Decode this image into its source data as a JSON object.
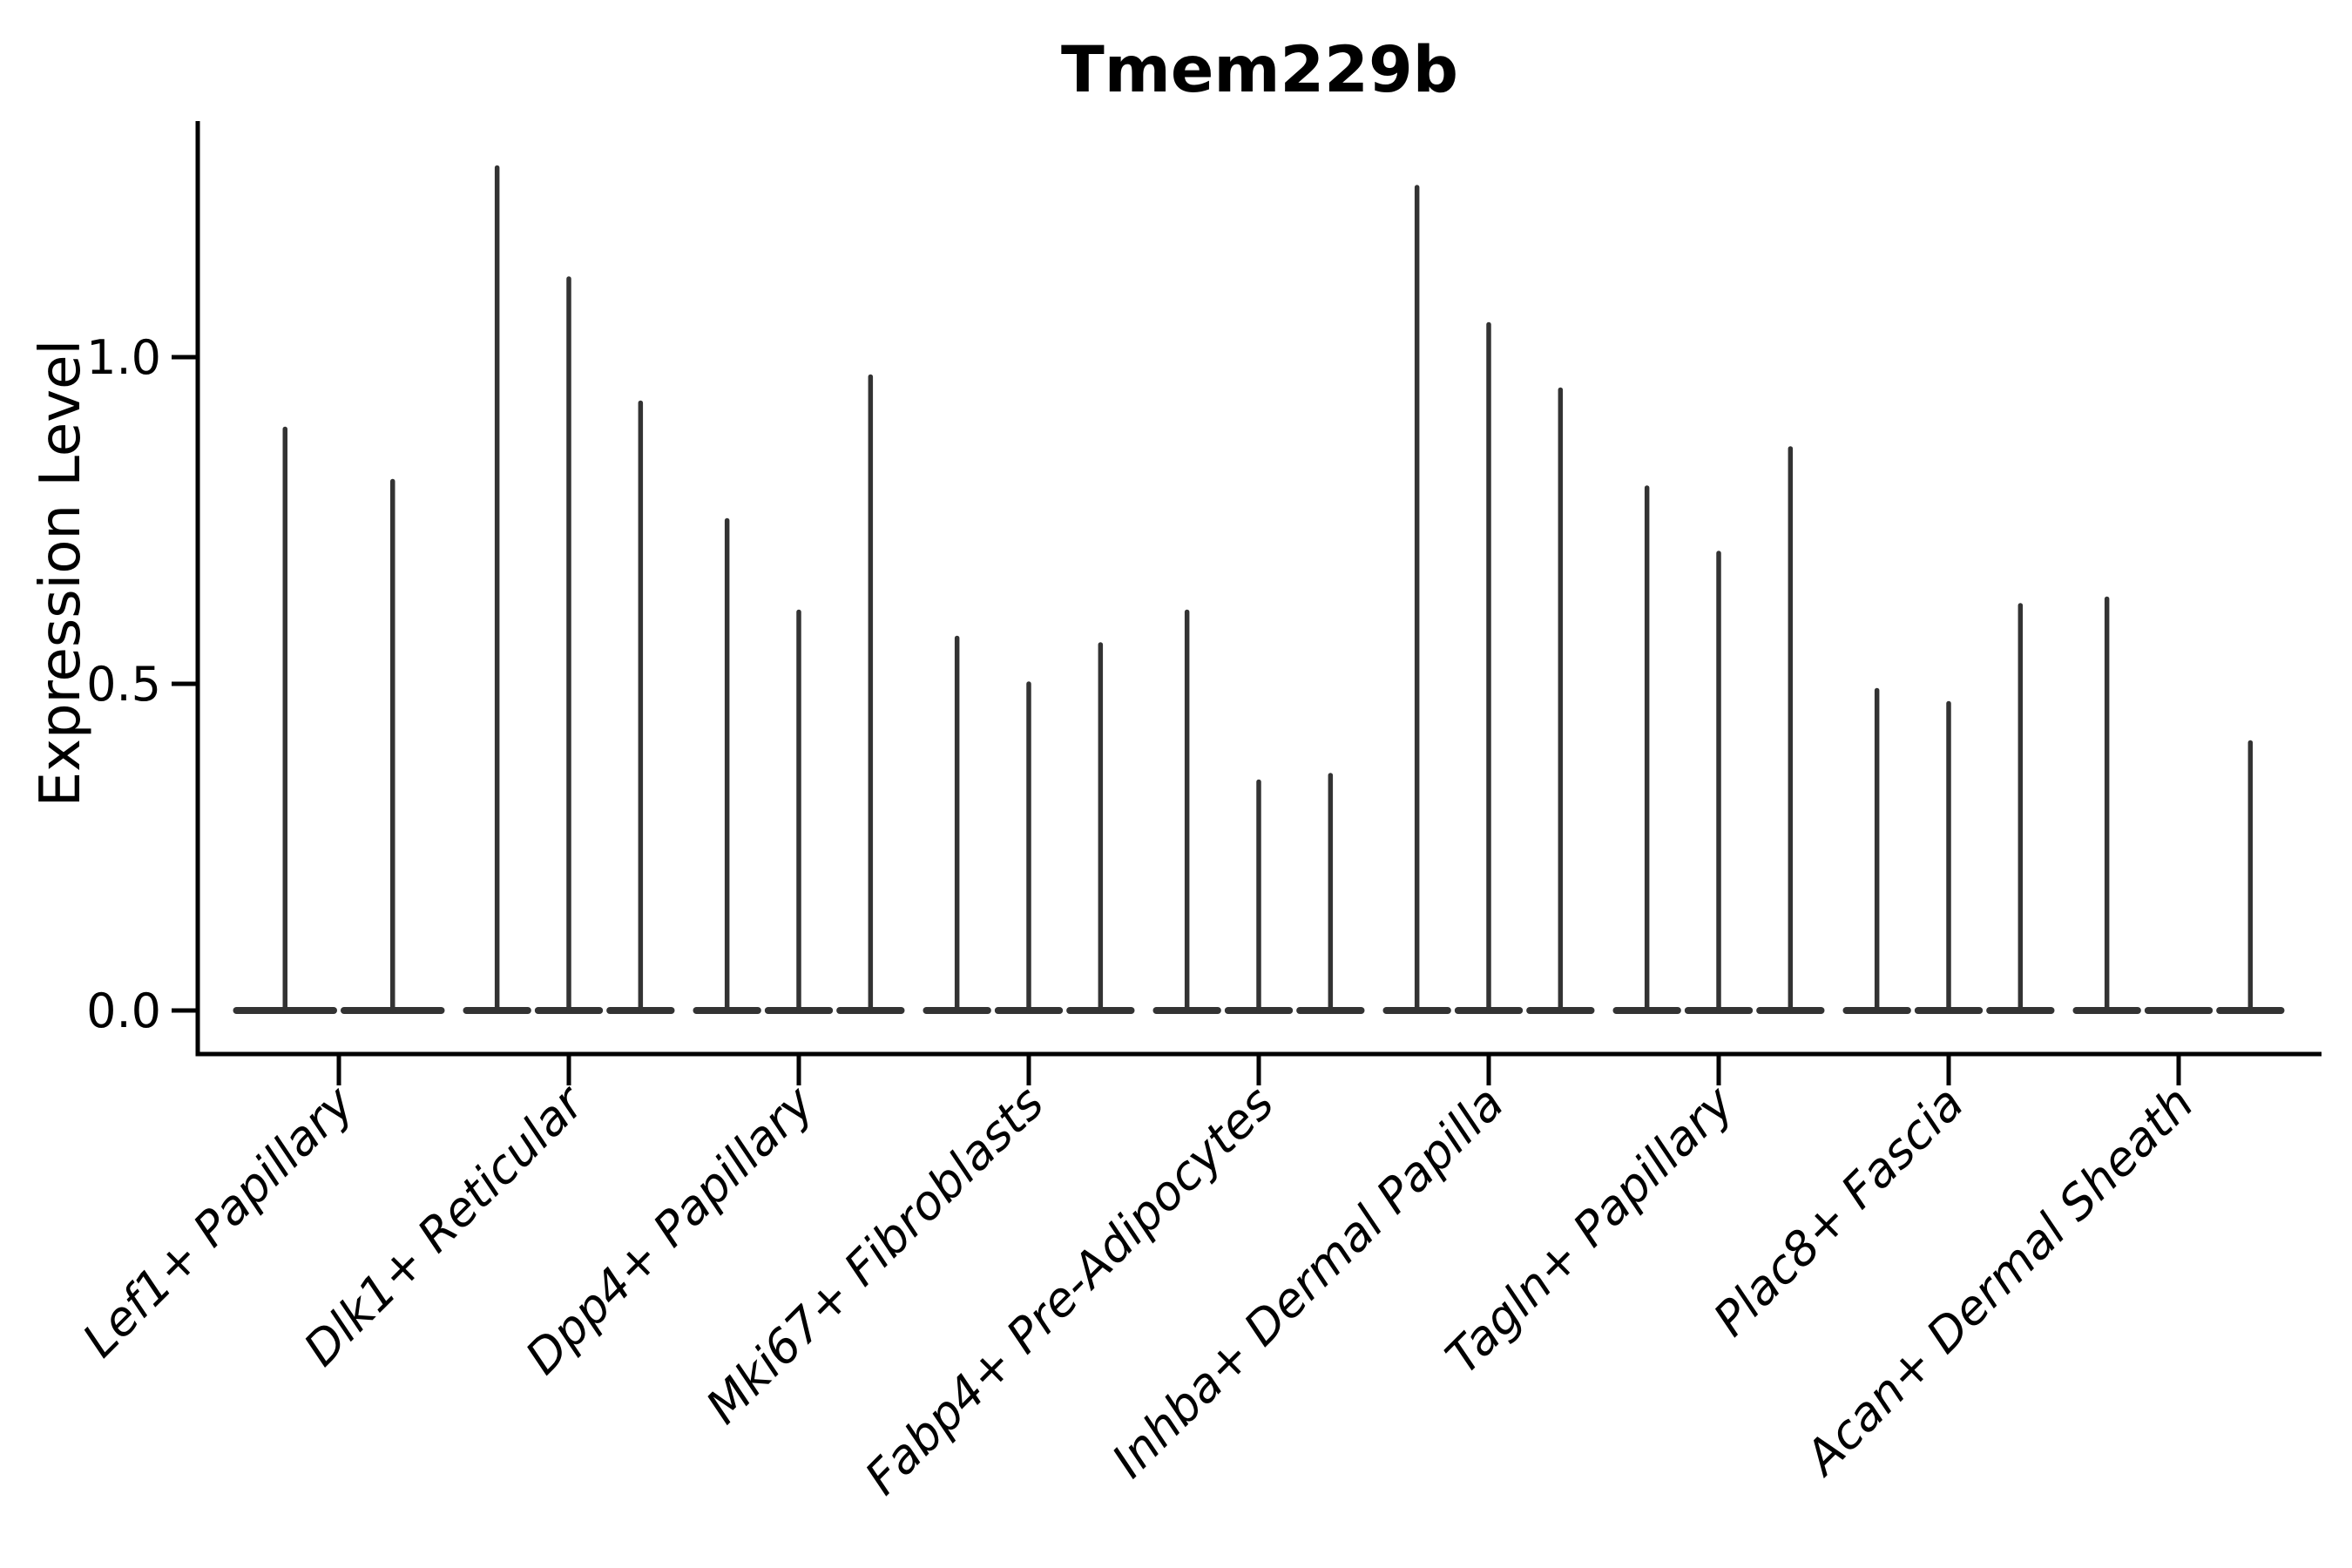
{
  "chart_data": {
    "type": "violin",
    "title": "Tmem229b",
    "xlabel": "",
    "ylabel": "Expression Level",
    "ylim": [
      0,
      1.36
    ],
    "grid": false,
    "legend": "none",
    "x_tick_rotation": 45,
    "yticks": [
      {
        "label": "0.0",
        "value": 0.0
      },
      {
        "label": "0.5",
        "value": 0.5
      },
      {
        "label": "1.0",
        "value": 1.0
      }
    ],
    "categories": [
      "Lef1+ Papillary",
      "Dlk1+ Reticular",
      "Dpp4+ Papillary",
      "Mki67+ Fibroblasts",
      "Fabp4+ Pre-Adipocytes",
      "Inhba+ Dermal Papilla",
      "Tagln+ Papillary",
      "Plac8+ Fascia",
      "Acan+ Dermal Sheath"
    ],
    "violin_peaks_per_category": [
      [
        0.89,
        0.81
      ],
      [
        1.29,
        1.12,
        0.93
      ],
      [
        0.75,
        0.61,
        0.97
      ],
      [
        0.57,
        0.5,
        0.56
      ],
      [
        0.61,
        0.35,
        0.36
      ],
      [
        1.26,
        1.05,
        0.95
      ],
      [
        0.8,
        0.7,
        0.86
      ],
      [
        0.49,
        0.47,
        0.62
      ],
      [
        0.63,
        0.0,
        0.41
      ]
    ],
    "baseline_value": 0.0
  },
  "colors": {
    "violin": "#333333",
    "axis": "#000000",
    "text": "#000000",
    "background": "#ffffff"
  }
}
